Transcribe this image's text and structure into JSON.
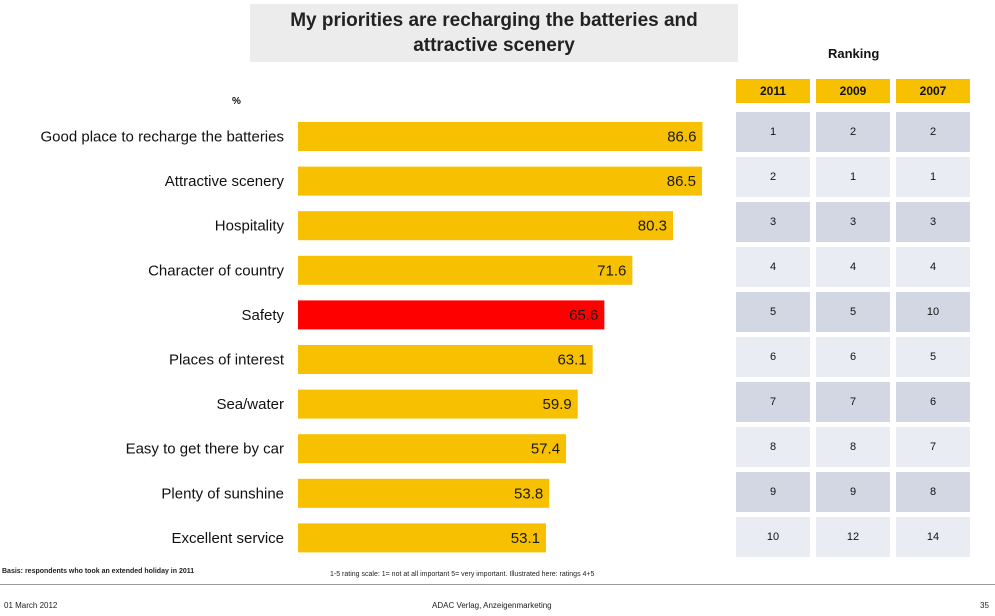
{
  "title_line1": "My priorities are recharging the batteries and",
  "title_line2": "attractive scenery",
  "unit_label": "%",
  "ranking_label": "Ranking",
  "chart_data": {
    "type": "bar",
    "orientation": "horizontal",
    "categories": [
      "Good place to recharge the batteries",
      "Attractive scenery",
      "Hospitality",
      "Character of country",
      "Safety",
      "Places of interest",
      "Sea/water",
      "Easy to get there by car",
      "Plenty of sunshine",
      "Excellent service"
    ],
    "values": [
      86.6,
      86.5,
      80.3,
      71.6,
      65.6,
      63.1,
      59.9,
      57.4,
      53.8,
      53.1
    ],
    "value_labels": [
      "86.6",
      "86.5",
      "80.3",
      "71.6",
      "65.6",
      "63.1",
      "59.9",
      "57.4",
      "53.8",
      "53.1"
    ],
    "xlim": [
      0,
      100
    ],
    "grid": false,
    "bar_color": "#f7c000",
    "highlight_color": "#ff0000",
    "highlight_index": 4
  },
  "ranking": {
    "years": [
      "2011",
      "2009",
      "2007"
    ],
    "rows": [
      [
        "1",
        "2",
        "2"
      ],
      [
        "2",
        "1",
        "1"
      ],
      [
        "3",
        "3",
        "3"
      ],
      [
        "4",
        "4",
        "4"
      ],
      [
        "5",
        "5",
        "10"
      ],
      [
        "6",
        "6",
        "5"
      ],
      [
        "7",
        "7",
        "6"
      ],
      [
        "8",
        "8",
        "7"
      ],
      [
        "9",
        "9",
        "8"
      ],
      [
        "10",
        "12",
        "14"
      ]
    ]
  },
  "footnote_basis": "Basis: respondents who took an extended holiday in 2011",
  "footnote_scale": "1-5 rating scale: 1= not at all important 5= very important. Illustrated here: ratings 4+5",
  "footer_date": "01 March 2012",
  "footer_company": "ADAC Verlag, Anzeigenmarketing",
  "footer_page": "35"
}
